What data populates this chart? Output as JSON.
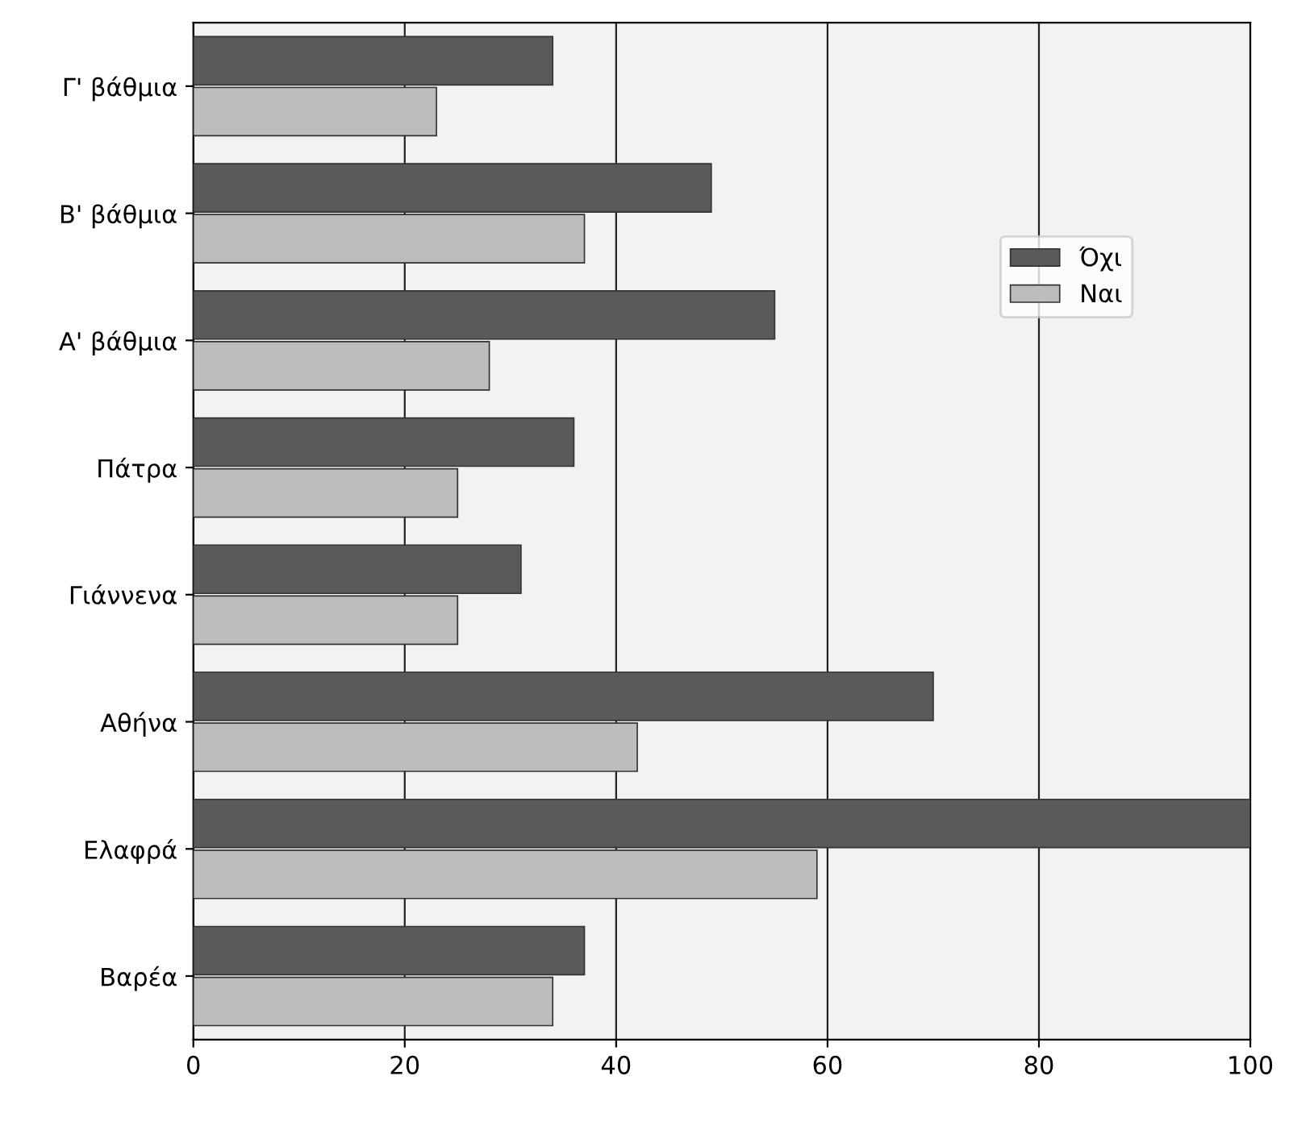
{
  "chart_data": {
    "type": "bar",
    "orientation": "horizontal",
    "categories": [
      "Γ' βάθμια",
      "Β' βάθμια",
      "Α' βάθμια",
      "Πάτρα",
      "Γιάννενα",
      "Αθήνα",
      "Ελαφρά",
      "Βαρέα"
    ],
    "series": [
      {
        "name": "Όχι",
        "color": "#5a5a5a",
        "values": [
          34,
          49,
          55,
          36,
          31,
          70,
          100,
          37
        ]
      },
      {
        "name": "Ναι",
        "color": "#bdbdbd",
        "values": [
          23,
          37,
          28,
          25,
          25,
          42,
          59,
          34
        ]
      }
    ],
    "xlim": [
      0,
      100
    ],
    "xticks": [
      0,
      20,
      40,
      60,
      80,
      100
    ],
    "grid": "x",
    "legend": "right"
  }
}
